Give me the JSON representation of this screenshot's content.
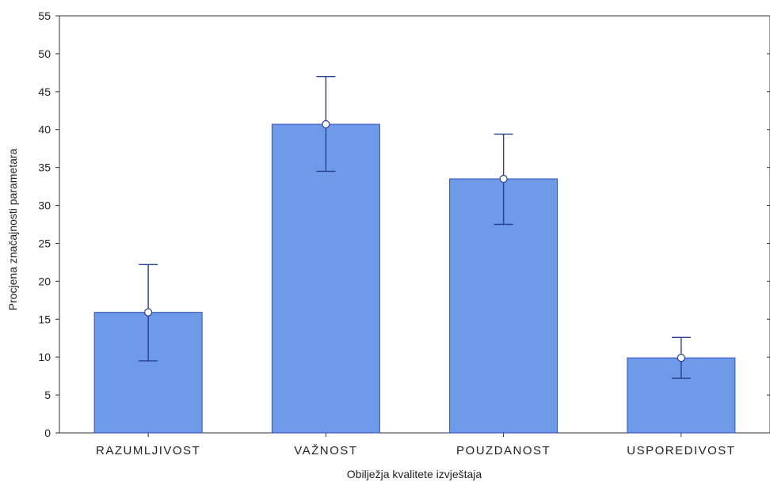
{
  "chart_data": {
    "type": "bar",
    "categories": [
      "RAZUMLJIVOST",
      "VAŽNOST",
      "POUZDANOST",
      "USPOREDIVOST"
    ],
    "values": [
      15.9,
      40.7,
      33.5,
      9.9
    ],
    "error_low": [
      9.5,
      34.5,
      27.5,
      7.2
    ],
    "error_high": [
      22.2,
      47.0,
      39.4,
      12.6
    ],
    "xlabel": "Obilježja kvalitete izvještaja",
    "ylabel": "Procjena značajnosti parametara",
    "ylim": [
      0,
      55
    ],
    "yticks": [
      0,
      5,
      10,
      15,
      20,
      25,
      30,
      35,
      40,
      45,
      50,
      55
    ],
    "grid": false,
    "colors": {
      "bar_fill": "#6f9ae8",
      "bar_stroke": "#2b4fbf",
      "error_bar": "#2b3f8f",
      "point_fill": "#ffffff"
    }
  }
}
